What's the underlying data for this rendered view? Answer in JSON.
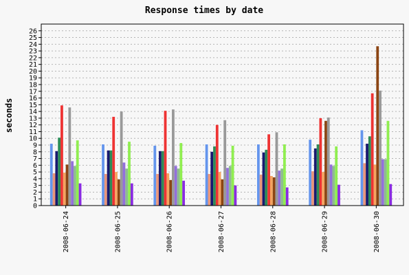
{
  "chart_data": {
    "type": "bar",
    "title": "Response times by date",
    "xlabel": "",
    "ylabel": "seconds",
    "ylim": [
      0,
      27
    ],
    "y_ticks": [
      0,
      1,
      2,
      3,
      4,
      5,
      6,
      7,
      8,
      9,
      10,
      11,
      12,
      13,
      14,
      15,
      16,
      17,
      18,
      19,
      20,
      21,
      22,
      23,
      24,
      25,
      26
    ],
    "grid": "horizontal dotted",
    "categories": [
      "2008-06-24",
      "2008-06-25",
      "2008-06-26",
      "2008-06-27",
      "2008-06-28",
      "2008-06-29",
      "2008-06-30"
    ],
    "series": [
      {
        "color": "#6495ed",
        "values": [
          9.2,
          9.1,
          8.9,
          9.1,
          9.1,
          9.8,
          11.2
        ]
      },
      {
        "color": "#e9967a",
        "values": [
          4.8,
          4.7,
          4.7,
          4.7,
          4.6,
          5.1,
          6.3
        ]
      },
      {
        "color": "#191970",
        "values": [
          8.1,
          8.2,
          8.1,
          8.0,
          7.9,
          8.5,
          9.2
        ]
      },
      {
        "color": "#2e8b57",
        "values": [
          10.1,
          8.2,
          8.1,
          8.8,
          8.3,
          9.1,
          10.3
        ]
      },
      {
        "color": "#ee3333",
        "values": [
          14.9,
          13.2,
          14.1,
          12.0,
          10.6,
          13.0,
          16.7
        ]
      },
      {
        "color": "#f4a460",
        "values": [
          4.9,
          5.0,
          4.8,
          5.0,
          4.4,
          5.0,
          6.1
        ]
      },
      {
        "color": "#8b4513",
        "values": [
          6.1,
          3.9,
          3.8,
          3.9,
          4.2,
          12.6,
          23.7
        ]
      },
      {
        "color": "#999999",
        "values": [
          14.6,
          14.0,
          14.3,
          12.7,
          10.9,
          13.1,
          17.1
        ]
      },
      {
        "color": "#9370db",
        "values": [
          6.6,
          6.4,
          5.9,
          5.6,
          5.2,
          6.1,
          6.9
        ]
      },
      {
        "color": "#8fbc8f",
        "values": [
          5.9,
          5.5,
          5.5,
          5.9,
          5.5,
          5.9,
          6.9
        ]
      },
      {
        "color": "#90ee50",
        "values": [
          9.7,
          9.5,
          9.3,
          8.9,
          9.1,
          8.8,
          12.6
        ]
      },
      {
        "color": "#8a2be2",
        "values": [
          3.3,
          3.3,
          3.7,
          3.0,
          2.7,
          3.1,
          3.2
        ]
      }
    ]
  }
}
